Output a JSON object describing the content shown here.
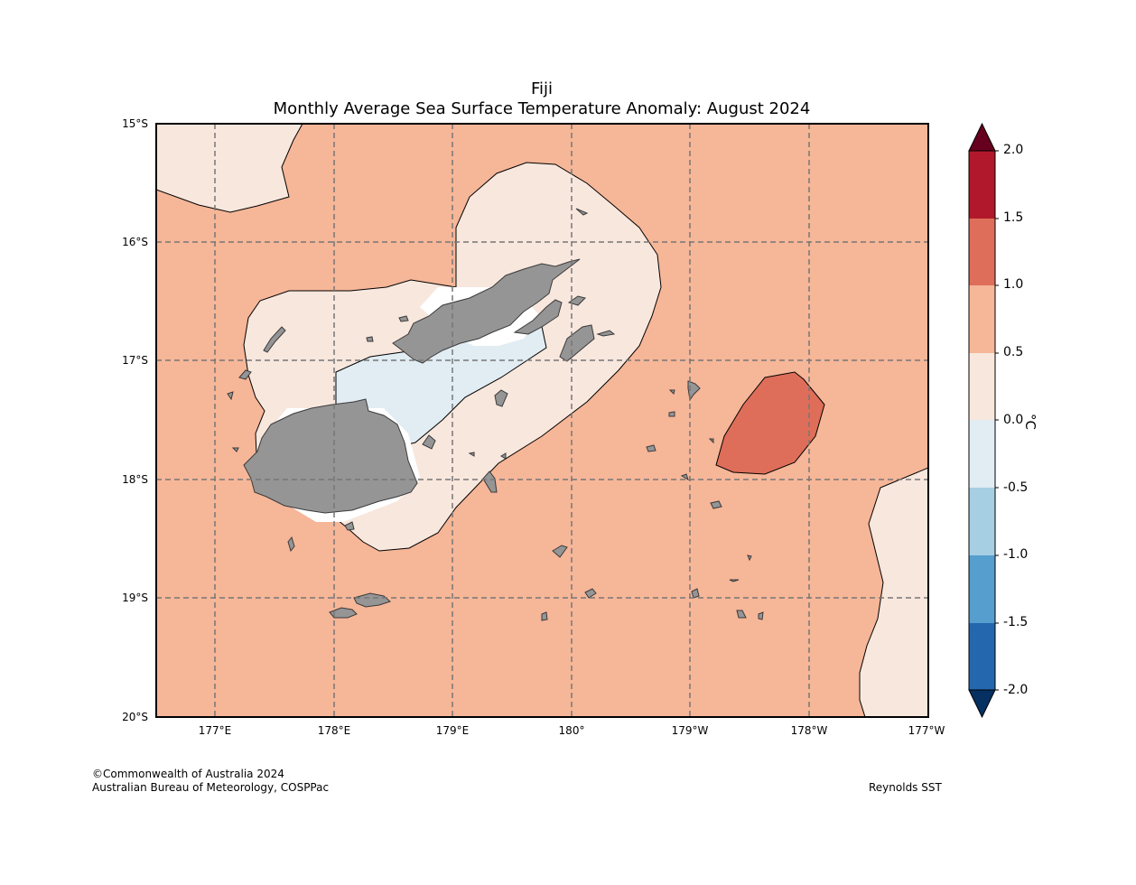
{
  "title": "Fiji",
  "subtitle": "Monthly Average Sea Surface Temperature Anomaly: August 2024",
  "lat_labels": [
    "15°S",
    "16°S",
    "17°S",
    "18°S",
    "19°S",
    "20°S"
  ],
  "lon_labels": [
    "177°E",
    "178°E",
    "179°E",
    "180°",
    "179°W",
    "178°W",
    "177°W"
  ],
  "colorbar": {
    "unit": "°C",
    "tick_labels": [
      "2.0",
      "1.5",
      "1.0",
      "0.5",
      "0.0",
      "-0.5",
      "-1.0",
      "-1.5",
      "-2.0"
    ],
    "colors": [
      "#67001f",
      "#b2182b",
      "#de6e59",
      "#f6b698",
      "#f8e7dd",
      "#e1ecf3",
      "#a7cfe4",
      "#559ecd",
      "#2467ae",
      "#053061"
    ]
  },
  "footer": {
    "copyright": "©Commonwealth of Australia 2024",
    "agency": "Australian Bureau of Meteorology, COSPPac",
    "source": "Reynolds SST"
  },
  "colors": {
    "background_anomaly": "#f6b698",
    "land": "#959595",
    "grid": "#777777"
  }
}
